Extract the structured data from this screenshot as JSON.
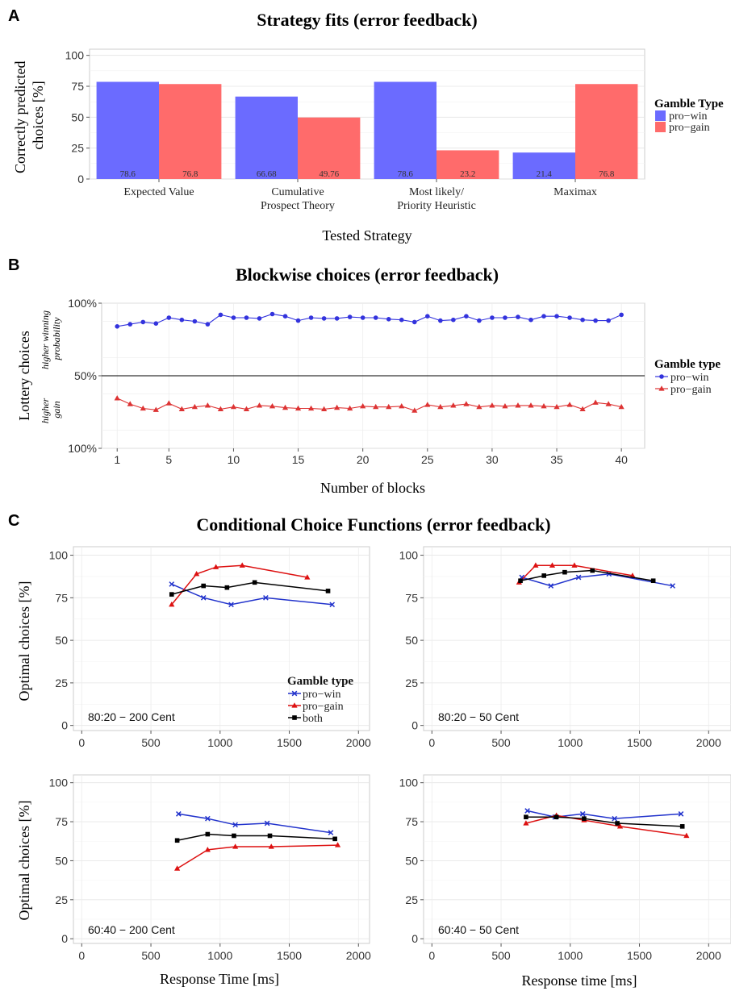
{
  "panels": {
    "A": {
      "letter": "A",
      "chart_data": {
        "type": "bar",
        "title": "Strategy fits (error feedback)",
        "xlabel": "Tested Strategy",
        "ylabel_lines": [
          "Correctly predicted",
          "choices [%]"
        ],
        "ylim": [
          0,
          105
        ],
        "yticks": [
          0,
          25,
          50,
          75,
          100
        ],
        "categories": [
          [
            "Expected Value"
          ],
          [
            "Cumulative",
            "Prospect Theory"
          ],
          [
            "Most likely/",
            "Priority Heuristic"
          ],
          [
            "Maximax"
          ]
        ],
        "series": [
          {
            "name": "pro−win",
            "color": "#6b6bff",
            "values": [
              78.6,
              66.68,
              78.6,
              21.4
            ],
            "labels": [
              "78.6",
              "66.68",
              "78.6",
              "21.4"
            ]
          },
          {
            "name": "pro−gain",
            "color": "#ff6b6b",
            "values": [
              76.8,
              49.76,
              23.2,
              76.8
            ],
            "labels": [
              "76.8",
              "49.76",
              "23.2",
              "76.8"
            ]
          }
        ],
        "legend": {
          "title": "Gamble Type",
          "position": "right"
        },
        "grid": true
      }
    },
    "B": {
      "letter": "B",
      "chart_data": {
        "type": "line",
        "title": "Blockwise choices (error feedback)",
        "xlabel": "Number of blocks",
        "ylabel": "Lottery choices",
        "upper_label_lines": [
          "higher winning",
          "probability"
        ],
        "lower_label_lines": [
          "higher",
          "gain"
        ],
        "ytick_labels": [
          "100%",
          "50%",
          "100%"
        ],
        "xticks": [
          1,
          5,
          10,
          15,
          20,
          25,
          30,
          35,
          40
        ],
        "xlim": [
          -0.2,
          41.8
        ],
        "ylim": [
          -100,
          100
        ],
        "x": [
          1,
          2,
          3,
          4,
          5,
          6,
          7,
          8,
          9,
          10,
          11,
          12,
          13,
          14,
          15,
          16,
          17,
          18,
          19,
          20,
          21,
          22,
          23,
          24,
          25,
          26,
          27,
          28,
          29,
          30,
          31,
          32,
          33,
          34,
          35,
          36,
          37,
          38,
          39,
          40
        ],
        "series": [
          {
            "name": "pro−win",
            "color": "#3333dd",
            "marker": "circle",
            "values": [
              68,
              71,
              74,
              72,
              80,
              77,
              75,
              71,
              84,
              80,
              80,
              79,
              85,
              82,
              76,
              80,
              79,
              79,
              81,
              80,
              80,
              78,
              77,
              74,
              82,
              76,
              77,
              82,
              76,
              80,
              80,
              81,
              77,
              82,
              82,
              80,
              77,
              76,
              76,
              84
            ]
          },
          {
            "name": "pro−gain",
            "color": "#dd3333",
            "marker": "triangle",
            "values": [
              -31,
              -39,
              -45,
              -47,
              -38,
              -46,
              -43,
              -41,
              -46,
              -43,
              -46,
              -41,
              -42,
              -44,
              -45,
              -45,
              -46,
              -44,
              -45,
              -42,
              -43,
              -43,
              -42,
              -48,
              -40,
              -43,
              -41,
              -39,
              -43,
              -41,
              -42,
              -41,
              -41,
              -42,
              -43,
              -40,
              -46,
              -37,
              -39,
              -43
            ]
          }
        ],
        "legend": {
          "title": "Gamble type",
          "position": "right"
        },
        "grid": true
      }
    },
    "C": {
      "letter": "C",
      "title": "Conditional Choice Functions (error feedback)",
      "xlabels": [
        "Response Time [ms]",
        "Response time [ms]"
      ],
      "ylabel": "Optimal choices [%]",
      "legend": {
        "title": "Gamble type",
        "position": "inside-bottom-right",
        "entries": [
          "pro−win",
          "pro−gain",
          "both"
        ]
      },
      "chart_data": [
        {
          "type": "line",
          "annotation": "80:20 − 200 Cent",
          "xlim": [
            -60,
            2080
          ],
          "ylim": [
            -3,
            105
          ],
          "xticks": [
            0,
            500,
            1000,
            1500,
            2000
          ],
          "yticks": [
            0,
            25,
            50,
            75,
            100
          ],
          "series": [
            {
              "name": "pro−win",
              "color": "#2233cc",
              "marker": "x",
              "x": [
                650,
                880,
                1080,
                1330,
                1810
              ],
              "y": [
                83,
                75,
                71,
                75,
                71
              ]
            },
            {
              "name": "pro−gain",
              "color": "#dd1111",
              "marker": "triangle",
              "x": [
                650,
                830,
                970,
                1160,
                1630
              ],
              "y": [
                71,
                89,
                93,
                94,
                87
              ]
            },
            {
              "name": "both",
              "color": "#000000",
              "marker": "square",
              "x": [
                650,
                880,
                1050,
                1250,
                1780
              ],
              "y": [
                77,
                82,
                81,
                84,
                79
              ]
            }
          ]
        },
        {
          "type": "line",
          "annotation": "80:20 − 50 Cent",
          "xlim": [
            -60,
            2080
          ],
          "ylim": [
            -3,
            105
          ],
          "xticks": [
            0,
            500,
            1000,
            1500,
            2000
          ],
          "yticks": [
            0,
            25,
            50,
            75,
            100
          ],
          "series": [
            {
              "name": "pro−win",
              "color": "#2233cc",
              "marker": "x",
              "x": [
                650,
                860,
                1060,
                1280,
                1740
              ],
              "y": [
                87,
                82,
                87,
                89,
                82
              ]
            },
            {
              "name": "pro−gain",
              "color": "#dd1111",
              "marker": "triangle",
              "x": [
                630,
                750,
                870,
                1030,
                1450
              ],
              "y": [
                84,
                94,
                94,
                94,
                88
              ]
            },
            {
              "name": "both",
              "color": "#000000",
              "marker": "square",
              "x": [
                640,
                810,
                960,
                1160,
                1600
              ],
              "y": [
                85,
                88,
                90,
                91,
                85
              ]
            }
          ]
        },
        {
          "type": "line",
          "annotation": "60:40 − 200 Cent",
          "xlim": [
            -60,
            2080
          ],
          "ylim": [
            -3,
            105
          ],
          "xticks": [
            0,
            500,
            1000,
            1500,
            2000
          ],
          "yticks": [
            0,
            25,
            50,
            75,
            100
          ],
          "series": [
            {
              "name": "pro−win",
              "color": "#2233cc",
              "marker": "x",
              "x": [
                700,
                910,
                1110,
                1340,
                1800
              ],
              "y": [
                80,
                77,
                73,
                74,
                68
              ]
            },
            {
              "name": "pro−gain",
              "color": "#dd1111",
              "marker": "triangle",
              "x": [
                690,
                910,
                1110,
                1370,
                1850
              ],
              "y": [
                45,
                57,
                59,
                59,
                60
              ]
            },
            {
              "name": "both",
              "color": "#000000",
              "marker": "square",
              "x": [
                690,
                910,
                1100,
                1360,
                1830
              ],
              "y": [
                63,
                67,
                66,
                66,
                64
              ]
            }
          ]
        },
        {
          "type": "line",
          "annotation": "60:40 − 50 Cent",
          "xlim": [
            -60,
            2080
          ],
          "ylim": [
            -3,
            105
          ],
          "xticks": [
            0,
            500,
            1000,
            1500,
            2000
          ],
          "yticks": [
            0,
            25,
            50,
            75,
            100
          ],
          "series": [
            {
              "name": "pro−win",
              "color": "#2233cc",
              "marker": "x",
              "x": [
                690,
                890,
                1090,
                1320,
                1800
              ],
              "y": [
                82,
                78,
                80,
                77,
                80
              ]
            },
            {
              "name": "pro−gain",
              "color": "#dd1111",
              "marker": "triangle",
              "x": [
                680,
                900,
                1100,
                1360,
                1840
              ],
              "y": [
                74,
                79,
                76,
                72,
                66
              ]
            },
            {
              "name": "both",
              "color": "#000000",
              "marker": "square",
              "x": [
                680,
                900,
                1100,
                1340,
                1810
              ],
              "y": [
                78,
                78,
                77,
                74,
                72
              ]
            }
          ]
        }
      ]
    }
  }
}
